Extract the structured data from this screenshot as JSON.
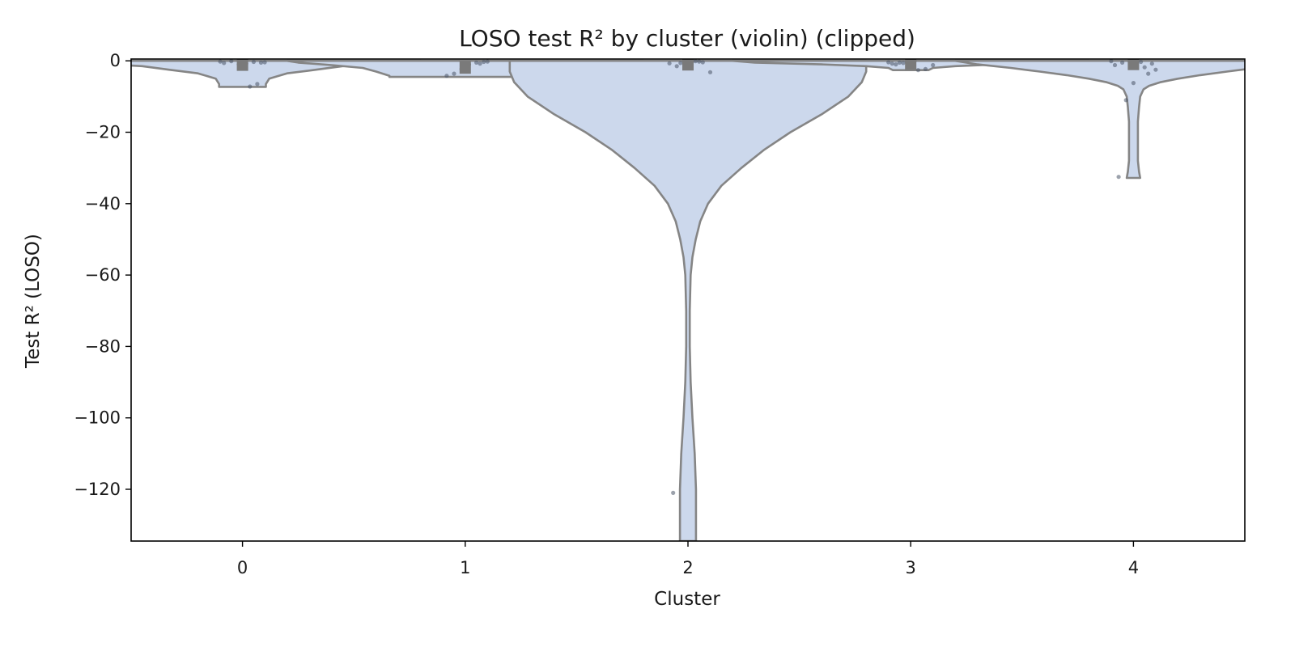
{
  "chart_data": {
    "type": "violin",
    "title": "LOSO test R² by cluster (violin) (clipped)",
    "xlabel": "Cluster",
    "ylabel": "Test R² (LOSO)",
    "categories": [
      "0",
      "1",
      "2",
      "3",
      "4"
    ],
    "ylim": [
      -134.5,
      0.5
    ],
    "yticks": [
      0,
      -20,
      -40,
      -60,
      -80,
      -100,
      -120
    ],
    "ytick_labels": [
      "0",
      "−20",
      "−40",
      "−60",
      "−80",
      "−100",
      "−120"
    ],
    "grid": false,
    "legend": "none",
    "colors": {
      "violin_fill": "#ccd8ec",
      "violin_edge": "#858585",
      "points": "#4a5668"
    },
    "violins": [
      {
        "cluster": "0",
        "median": -1.0,
        "profile": [
          [
            0.0,
            0.8
          ],
          [
            -0.5,
            0.75
          ],
          [
            -1.0,
            0.6
          ],
          [
            -1.5,
            0.45
          ],
          [
            -2.5,
            0.33
          ],
          [
            -3.5,
            0.2
          ],
          [
            -5.0,
            0.12
          ],
          [
            -6.5,
            0.105
          ],
          [
            -7.3,
            0.105
          ]
        ],
        "points": [
          -0.2,
          -0.5,
          -0.3,
          -0.8,
          -1.0,
          -0.1,
          -0.6,
          -0.4,
          -6.5,
          -7.2
        ]
      },
      {
        "cluster": "1",
        "median": -1.8,
        "profile": [
          [
            0.0,
            0.8
          ],
          [
            -0.5,
            0.75
          ],
          [
            -1.2,
            0.6
          ],
          [
            -2.0,
            0.46
          ],
          [
            -3.0,
            0.4
          ],
          [
            -4.2,
            0.34
          ],
          [
            -4.5,
            0.34
          ]
        ],
        "points": [
          -0.3,
          -0.5,
          -1.0,
          -2.3,
          -3.6,
          -4.2,
          -0.2,
          -0.8
        ]
      },
      {
        "cluster": "2",
        "median": -0.9,
        "profile": [
          [
            0.0,
            0.8
          ],
          [
            -3.0,
            0.8
          ],
          [
            -6.0,
            0.78
          ],
          [
            -10.0,
            0.72
          ],
          [
            -15.0,
            0.6
          ],
          [
            -20.0,
            0.46
          ],
          [
            -25.0,
            0.34
          ],
          [
            -30.0,
            0.24
          ],
          [
            -35.0,
            0.15
          ],
          [
            -40.0,
            0.09
          ],
          [
            -45.0,
            0.055
          ],
          [
            -50.0,
            0.035
          ],
          [
            -55.0,
            0.02
          ],
          [
            -60.0,
            0.012
          ],
          [
            -70.0,
            0.008
          ],
          [
            -80.0,
            0.008
          ],
          [
            -90.0,
            0.012
          ],
          [
            -100.0,
            0.02
          ],
          [
            -110.0,
            0.03
          ],
          [
            -120.0,
            0.036
          ],
          [
            -134.5,
            0.036
          ]
        ],
        "points": [
          -0.2,
          -0.5,
          -0.3,
          -1.5,
          -0.7,
          -3.2,
          -0.4,
          -0.1,
          -0.9,
          -0.6,
          -121.0
        ]
      },
      {
        "cluster": "3",
        "median": -0.8,
        "profile": [
          [
            0.0,
            0.8
          ],
          [
            -0.5,
            0.7
          ],
          [
            -1.0,
            0.4
          ],
          [
            -1.5,
            0.2
          ],
          [
            -2.0,
            0.1
          ],
          [
            -2.6,
            0.08
          ]
        ],
        "points": [
          -0.1,
          -0.3,
          -0.5,
          -0.8,
          -1.2,
          -2.3,
          -2.6,
          -0.2,
          -0.6,
          -1.0,
          -0.4
        ]
      },
      {
        "cluster": "4",
        "median": -0.8,
        "profile": [
          [
            0.0,
            0.8
          ],
          [
            -1.0,
            0.7
          ],
          [
            -2.0,
            0.55
          ],
          [
            -3.0,
            0.42
          ],
          [
            -4.0,
            0.3
          ],
          [
            -5.0,
            0.2
          ],
          [
            -6.0,
            0.12
          ],
          [
            -7.0,
            0.07
          ],
          [
            -8.0,
            0.045
          ],
          [
            -10.0,
            0.03
          ],
          [
            -13.0,
            0.025
          ],
          [
            -17.0,
            0.02
          ],
          [
            -22.0,
            0.02
          ],
          [
            -28.0,
            0.02
          ],
          [
            -31.0,
            0.025
          ],
          [
            -32.8,
            0.03
          ]
        ],
        "points": [
          -0.2,
          -0.5,
          -1.2,
          -2.5,
          -3.6,
          -0.3,
          -6.2,
          -11.0,
          -32.5,
          -0.1,
          -0.8,
          -1.8
        ]
      }
    ]
  }
}
